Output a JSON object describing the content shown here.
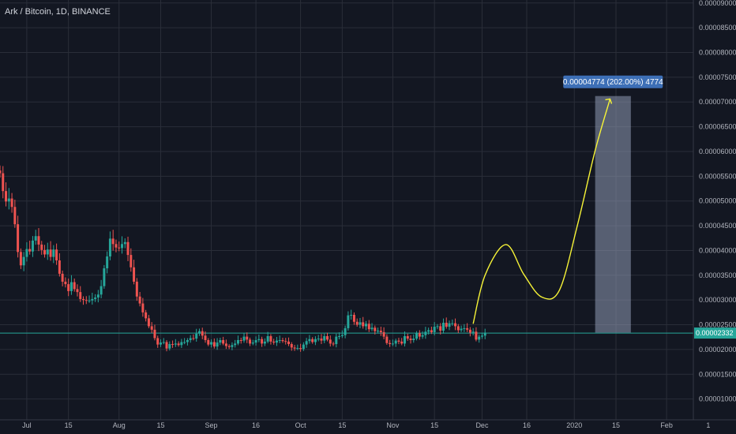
{
  "header": {
    "symbol": "Ark / Bitcoin, 1D, BINANCE"
  },
  "colors": {
    "background": "#131722",
    "grid": "#2a2e39",
    "up": "#26a69a",
    "down": "#ef5350",
    "price_line": "#26a69a",
    "annotation": "#f6f337",
    "measure_fill": "#8f9bb5",
    "measure_label_bg": "#3d6fb6"
  },
  "price_axis": {
    "labels": [
      "0.00009000",
      "0.00008500",
      "0.00008000",
      "0.00007500",
      "0.00007000",
      "0.00006500",
      "0.00006000",
      "0.00005500",
      "0.00005000",
      "0.00004500",
      "0.00004000",
      "0.00003500",
      "0.00003000",
      "0.00002500",
      "0.00002000",
      "0.00001500",
      "0.00001000"
    ],
    "current_price": "0.00002332"
  },
  "time_axis": {
    "labels": [
      "Jul",
      "15",
      "Aug",
      "15",
      "Sep",
      "16",
      "Oct",
      "15",
      "Nov",
      "15",
      "Dec",
      "16",
      "2020",
      "15",
      "Feb",
      "1"
    ]
  },
  "measure": {
    "label": "0.00004774 (202.00%) 4774"
  },
  "chart_data": {
    "type": "candlestick",
    "title": "Ark / Bitcoin, 1D, BINANCE",
    "x_range": [
      "2019-06-22",
      "2020-02-10"
    ],
    "y_range": [
      5.8e-06,
      9.06e-05
    ],
    "close": [
      5.56e-05,
      5.2e-05,
      4.99e-05,
      5.05e-05,
      4.88e-05,
      4.53e-05,
      3.97e-05,
      3.7e-05,
      3.87e-05,
      4.03e-05,
      3.98e-05,
      4.2e-05,
      4.29e-05,
      4.12e-05,
      4.01e-05,
      3.92e-05,
      4.02e-05,
      3.87e-05,
      4.02e-05,
      3.8e-05,
      3.53e-05,
      3.37e-05,
      3.32e-05,
      3.18e-05,
      3.36e-05,
      3.22e-05,
      3.16e-05,
      3.02e-05,
      3e-05,
      2.99e-05,
      2.99e-05,
      3.02e-05,
      3.05e-05,
      3.11e-05,
      3.28e-05,
      3.64e-05,
      3.88e-05,
      4.24e-05,
      4.13e-05,
      4.06e-05,
      4.05e-05,
      4.13e-05,
      4.17e-05,
      3.91e-05,
      3.66e-05,
      3.37e-05,
      3.07e-05,
      2.93e-05,
      2.75e-05,
      2.63e-05,
      2.47e-05,
      2.4e-05,
      2.23e-05,
      2.1e-05,
      2.14e-05,
      2.15e-05,
      2.02e-05,
      2.11e-05,
      2.1e-05,
      2.12e-05,
      2.09e-05,
      2.15e-05,
      2.15e-05,
      2.19e-05,
      2.23e-05,
      2.22e-05,
      2.32e-05,
      2.37e-05,
      2.28e-05,
      2.19e-05,
      2.1e-05,
      2.15e-05,
      2.06e-05,
      2.14e-05,
      2.19e-05,
      2.12e-05,
      2.07e-05,
      2.05e-05,
      2.09e-05,
      2.12e-05,
      2.19e-05,
      2.18e-05,
      2.26e-05,
      2.2e-05,
      2.12e-05,
      2.14e-05,
      2.19e-05,
      2.21e-05,
      2.12e-05,
      2.16e-05,
      2.27e-05,
      2.16e-05,
      2.14e-05,
      2.18e-05,
      2.19e-05,
      2.17e-05,
      2.16e-05,
      2.11e-05,
      2.04e-05,
      2.02e-05,
      2.03e-05,
      2.01e-05,
      2.1e-05,
      2.17e-05,
      2.21e-05,
      2.15e-05,
      2.21e-05,
      2.22e-05,
      2.18e-05,
      2.27e-05,
      2.2e-05,
      2.12e-05,
      2.11e-05,
      2.26e-05,
      2.27e-05,
      2.29e-05,
      2.43e-05,
      2.69e-05,
      2.7e-05,
      2.56e-05,
      2.5e-05,
      2.55e-05,
      2.47e-05,
      2.52e-05,
      2.41e-05,
      2.44e-05,
      2.37e-05,
      2.38e-05,
      2.35e-05,
      2.26e-05,
      2.13e-05,
      2.11e-05,
      2.12e-05,
      2.18e-05,
      2.16e-05,
      2.12e-05,
      2.27e-05,
      2.22e-05,
      2.19e-05,
      2.22e-05,
      2.33e-05,
      2.26e-05,
      2.29e-05,
      2.36e-05,
      2.39e-05,
      2.35e-05,
      2.46e-05,
      2.47e-05,
      2.38e-05,
      2.54e-05,
      2.46e-05,
      2.53e-05,
      2.53e-05,
      2.47e-05,
      2.39e-05,
      2.42e-05,
      2.43e-05,
      2.4e-05,
      2.34e-05,
      2.36e-05,
      2.2e-05,
      2.26e-05,
      2.28e-05,
      2.34e-05
    ],
    "series": [
      {
        "name": "ARKBTC",
        "start": "2019-06-22"
      }
    ],
    "price_line": 2.332e-05,
    "projection": {
      "dates": [
        "2019-11-28",
        "2019-12-02",
        "2019-12-09",
        "2019-12-15",
        "2019-12-21",
        "2019-12-27",
        "2020-01-02",
        "2020-01-08",
        "2020-01-13"
      ],
      "values": [
        2.52e-05,
        3.5e-05,
        4.12e-05,
        3.52e-05,
        3.06e-05,
        3.2e-05,
        4.5e-05,
        6.02e-05,
        7.06e-05
      ]
    },
    "measure_range": {
      "from": "2020-01-08",
      "to": "2020-01-20",
      "low": 2.34e-05,
      "high": 7.12e-05
    }
  }
}
